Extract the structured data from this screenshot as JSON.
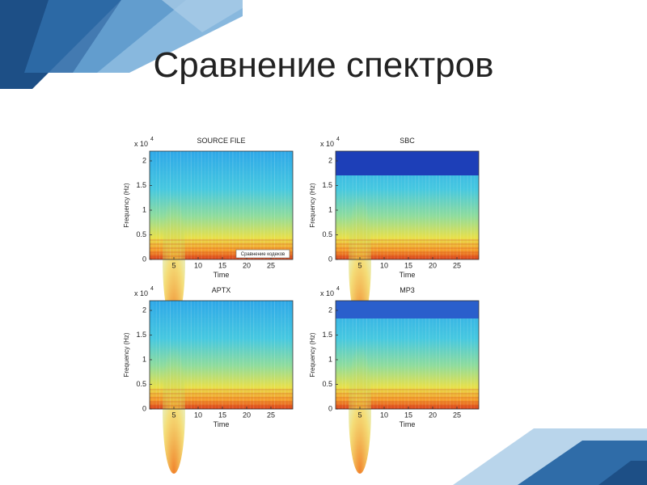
{
  "title": "Сравнение спектров",
  "panels": [
    {
      "title": "SOURCE FILE",
      "x_label": "Time",
      "y_label": "Frequency (Hz)",
      "y_multiplier": "x 10",
      "y_exponent": "4",
      "yticks": [
        "0",
        "0.5",
        "1",
        "1.5",
        "2"
      ],
      "xticks": [
        "5",
        "10",
        "15",
        "20",
        "25"
      ],
      "note": "Сравнение кодеков"
    },
    {
      "title": "SBC",
      "x_label": "Time",
      "y_label": "Frequency (Hz)",
      "y_multiplier": "x 10",
      "y_exponent": "4",
      "yticks": [
        "0",
        "0.5",
        "1",
        "1.5",
        "2"
      ],
      "xticks": [
        "5",
        "10",
        "15",
        "20",
        "25"
      ]
    },
    {
      "title": "APTX",
      "x_label": "Time",
      "y_label": "Frequency (Hz)",
      "y_multiplier": "x 10",
      "y_exponent": "4",
      "yticks": [
        "0",
        "0.5",
        "1",
        "1.5",
        "2"
      ],
      "xticks": [
        "5",
        "10",
        "15",
        "20",
        "25"
      ]
    },
    {
      "title": "MP3",
      "x_label": "Time",
      "y_label": "Frequency (Hz)",
      "y_multiplier": "x 10",
      "y_exponent": "4",
      "yticks": [
        "0",
        "0.5",
        "1",
        "1.5",
        "2"
      ],
      "xticks": [
        "5",
        "10",
        "15",
        "20",
        "25"
      ]
    }
  ]
}
